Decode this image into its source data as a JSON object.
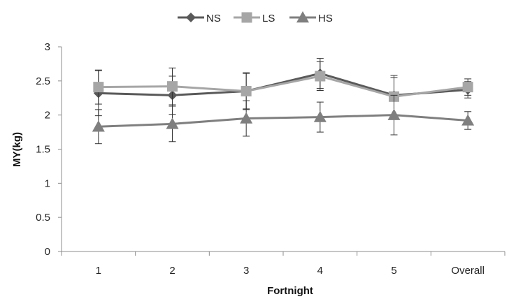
{
  "chart_data": {
    "type": "line",
    "title": "",
    "xlabel": "Fortnight",
    "ylabel": "MY(kg)",
    "categories": [
      "1",
      "2",
      "3",
      "4",
      "5",
      "Overall"
    ],
    "ylim": [
      0,
      3
    ],
    "yticks": [
      "0",
      "0.5",
      "1",
      "1.5",
      "2",
      "2.5",
      "3"
    ],
    "grid": false,
    "legend": "top-center",
    "series": [
      {
        "name": "NS",
        "marker": "diamond",
        "color": "#595959",
        "values": [
          2.32,
          2.29,
          2.35,
          2.61,
          2.29,
          2.37
        ],
        "errors": [
          0.33,
          0.28,
          0.27,
          0.22,
          0.29,
          0.12
        ]
      },
      {
        "name": "LS",
        "marker": "square",
        "color": "#a6a6a6",
        "values": [
          2.41,
          2.42,
          2.35,
          2.57,
          2.27,
          2.41
        ],
        "errors": [
          0.25,
          0.27,
          0.26,
          0.21,
          0.28,
          0.12
        ]
      },
      {
        "name": "HS",
        "marker": "triangle",
        "color": "#7f7f7f",
        "values": [
          1.83,
          1.87,
          1.95,
          1.97,
          2.0,
          1.92
        ],
        "errors": [
          0.25,
          0.26,
          0.26,
          0.22,
          0.29,
          0.13
        ]
      }
    ]
  }
}
